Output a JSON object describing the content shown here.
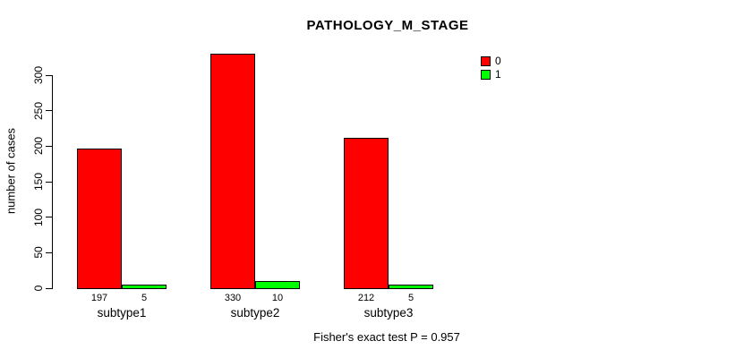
{
  "title": "PATHOLOGY_M_STAGE",
  "annotation": "Fisher's exact test P = 0.957",
  "colors": {
    "series0": "#ff0000",
    "series1": "#00ff00",
    "axis": "#000000",
    "text": "#000000",
    "background": "#ffffff"
  },
  "chart_data": {
    "type": "bar",
    "title": "PATHOLOGY_M_STAGE",
    "xlabel": "",
    "ylabel": "number of cases",
    "categories": [
      "subtype1",
      "subtype2",
      "subtype3"
    ],
    "series": [
      {
        "name": "0",
        "color": "#ff0000",
        "values": [
          197,
          330,
          212
        ]
      },
      {
        "name": "1",
        "color": "#00ff00",
        "values": [
          5,
          10,
          5
        ]
      }
    ],
    "bar_value_labels": [
      [
        "197",
        "5"
      ],
      [
        "330",
        "10"
      ],
      [
        "212",
        "5"
      ]
    ],
    "yticks": [
      0,
      50,
      100,
      150,
      200,
      250,
      300
    ],
    "ylim": [
      0,
      300
    ],
    "grid": false,
    "legend_position": "top-right",
    "legend_entries": [
      "0",
      "1"
    ],
    "annotation": "Fisher's exact test P = 0.957"
  }
}
